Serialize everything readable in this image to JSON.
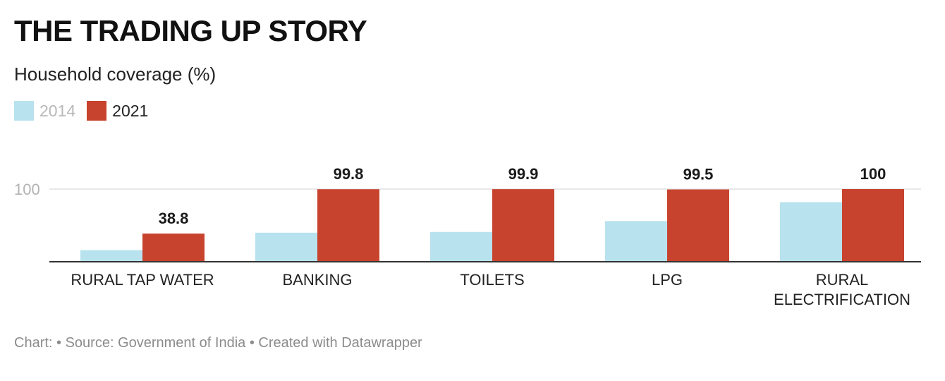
{
  "header": {
    "title": "THE TRADING UP STORY",
    "subtitle": "Household coverage (%)"
  },
  "footer": {
    "credit": "Chart: • Source: Government of India • Created with Datawrapper"
  },
  "colors": {
    "series_2014": "#b8e2ee",
    "series_2021": "#c8432e",
    "baseline": "#333333",
    "gridline": "#e0e0e0",
    "tick_label": "#b3b3b3"
  },
  "chart_data": {
    "type": "bar",
    "title": "THE TRADING UP STORY",
    "subtitle": "Household coverage (%)",
    "categories": [
      [
        "RURAL TAP WATER"
      ],
      [
        "BANKING"
      ],
      [
        "TOILETS"
      ],
      [
        "LPG"
      ],
      [
        "RURAL",
        "ELECTRIFICATION"
      ]
    ],
    "series": [
      {
        "name": "2014",
        "values": [
          16,
          40,
          41,
          56,
          82
        ],
        "color": "#b8e2ee",
        "show_labels": false
      },
      {
        "name": "2021",
        "values": [
          38.8,
          99.8,
          99.9,
          99.5,
          100
        ],
        "color": "#c8432e",
        "show_labels": true
      }
    ],
    "value_labels": [
      "38.8",
      "99.8",
      "99.9",
      "99.5",
      "100"
    ],
    "y_ticks": [
      100
    ],
    "ylim": [
      0,
      100
    ],
    "grid": true,
    "legend_position": "top-left"
  }
}
